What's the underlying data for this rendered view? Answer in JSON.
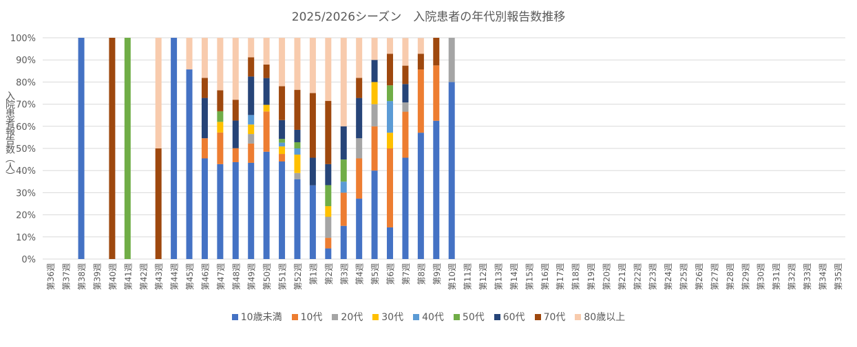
{
  "chart_data": {
    "type": "bar",
    "stacked": "percent",
    "title": "2025/2026シーズン　入院患者の年代別報告数推移",
    "ylabel": "入院患者報告数（人）",
    "xlabel": "",
    "ylim": [
      0,
      100
    ],
    "yticks": [
      "0%",
      "10%",
      "20%",
      "30%",
      "40%",
      "50%",
      "60%",
      "70%",
      "80%",
      "90%",
      "100%"
    ],
    "grid": true,
    "legend": "bottom",
    "categories": [
      "第36週",
      "第37週",
      "第38週",
      "第39週",
      "第40週",
      "第41週",
      "第42週",
      "第43週",
      "第44週",
      "第45週",
      "第46週",
      "第47週",
      "第48週",
      "第49週",
      "第50週",
      "第51週",
      "第52週",
      "第1週",
      "第2週",
      "第3週",
      "第4週",
      "第5週",
      "第6週",
      "第7週",
      "第8週",
      "第9週",
      "第10週",
      "第11週",
      "第12週",
      "第13週",
      "第14週",
      "第15週",
      "第16週",
      "第17週",
      "第18週",
      "第19週",
      "第20週",
      "第21週",
      "第22週",
      "第23週",
      "第24週",
      "第25週",
      "第26週",
      "第27週",
      "第28週",
      "第29週",
      "第30週",
      "第31週",
      "第32週",
      "第33週",
      "第34週",
      "第35週"
    ],
    "series": [
      {
        "name": "10歳未満",
        "color": "#4472C4",
        "values": [
          null,
          null,
          100,
          null,
          0,
          0,
          null,
          0,
          100,
          85.7,
          45.5,
          42.9,
          43.8,
          43.5,
          48.5,
          44.1,
          36.1,
          33.3,
          4.8,
          15,
          27.3,
          40,
          14.3,
          45.8,
          57.1,
          62.5,
          80,
          null,
          null,
          null,
          null,
          null,
          null,
          null,
          null,
          null,
          null,
          null,
          null,
          null,
          null,
          null,
          null,
          null,
          null,
          null,
          null,
          null,
          null,
          null,
          null,
          null
        ]
      },
      {
        "name": "10代",
        "color": "#ED7D31",
        "values": [
          null,
          null,
          0,
          null,
          0,
          0,
          null,
          0,
          0,
          0,
          9.1,
          14.3,
          6.3,
          8.7,
          18.2,
          3.4,
          0,
          0,
          4.8,
          15,
          18.2,
          20,
          35.7,
          20.8,
          28.6,
          25,
          0,
          null,
          null,
          null,
          null,
          null,
          null,
          null,
          null,
          null,
          null,
          null,
          null,
          null,
          null,
          null,
          null,
          null,
          null,
          null,
          null,
          null,
          null,
          null,
          null,
          null
        ]
      },
      {
        "name": "20代",
        "color": "#A5A5A5",
        "values": [
          null,
          null,
          0,
          null,
          0,
          0,
          null,
          0,
          0,
          0,
          0,
          0,
          0,
          4.3,
          0,
          0,
          2.8,
          0,
          9.5,
          0,
          9.1,
          10,
          0,
          4.2,
          0,
          0,
          20,
          null,
          null,
          null,
          null,
          null,
          null,
          null,
          null,
          null,
          null,
          null,
          null,
          null,
          null,
          null,
          null,
          null,
          null,
          null,
          null,
          null,
          null,
          null,
          null,
          null
        ]
      },
      {
        "name": "30代",
        "color": "#FFC000",
        "values": [
          null,
          null,
          0,
          null,
          0,
          0,
          null,
          0,
          0,
          0,
          0,
          4.8,
          0,
          4.3,
          3.0,
          3.4,
          8.3,
          0,
          4.8,
          0,
          0,
          10,
          7.1,
          0,
          0,
          0,
          0,
          null,
          null,
          null,
          null,
          null,
          null,
          null,
          null,
          null,
          null,
          null,
          null,
          null,
          null,
          null,
          null,
          null,
          null,
          null,
          null,
          null,
          null,
          null,
          null,
          null
        ]
      },
      {
        "name": "40代",
        "color": "#5B9BD5",
        "values": [
          null,
          null,
          0,
          null,
          0,
          0,
          null,
          0,
          0,
          0,
          0,
          0,
          0,
          4.3,
          0,
          1.7,
          2.8,
          0,
          0,
          5,
          0,
          0,
          14.3,
          0,
          0,
          0,
          0,
          null,
          null,
          null,
          null,
          null,
          null,
          null,
          null,
          null,
          null,
          null,
          null,
          null,
          null,
          null,
          null,
          null,
          null,
          null,
          null,
          null,
          null,
          null,
          null,
          null
        ]
      },
      {
        "name": "50代",
        "color": "#70AD47",
        "values": [
          null,
          null,
          0,
          null,
          0,
          100,
          null,
          0,
          0,
          0,
          0,
          4.8,
          0,
          0,
          0,
          1.7,
          2.8,
          0,
          9.5,
          10,
          0,
          0,
          7.1,
          0,
          0,
          0,
          0,
          null,
          null,
          null,
          null,
          null,
          null,
          null,
          null,
          null,
          null,
          null,
          null,
          null,
          null,
          null,
          null,
          null,
          null,
          null,
          null,
          null,
          null,
          null,
          null,
          null
        ]
      },
      {
        "name": "60代",
        "color": "#264478",
        "values": [
          null,
          null,
          0,
          null,
          0,
          0,
          null,
          0,
          0,
          0,
          18.2,
          0,
          12.5,
          17.4,
          12.1,
          8.5,
          5.6,
          12.5,
          9.5,
          15,
          18.2,
          10,
          0,
          8.3,
          0,
          0,
          0,
          null,
          null,
          null,
          null,
          null,
          null,
          null,
          null,
          null,
          null,
          null,
          null,
          null,
          null,
          null,
          null,
          null,
          null,
          null,
          null,
          null,
          null,
          null,
          null,
          null
        ]
      },
      {
        "name": "70代",
        "color": "#9E480E",
        "values": [
          null,
          null,
          0,
          null,
          100,
          0,
          null,
          50,
          0,
          0,
          9.1,
          9.5,
          9.4,
          8.7,
          6.1,
          15.3,
          18.1,
          29.2,
          28.6,
          0,
          9.1,
          0,
          14.3,
          8.3,
          7.1,
          12.5,
          0,
          null,
          null,
          null,
          null,
          null,
          null,
          null,
          null,
          null,
          null,
          null,
          null,
          null,
          null,
          null,
          null,
          null,
          null,
          null,
          null,
          null,
          null,
          null,
          null,
          null
        ]
      },
      {
        "name": "80歳以上",
        "color": "#F8CBAD",
        "values": [
          null,
          null,
          0,
          null,
          0,
          0,
          null,
          50,
          0,
          14.3,
          18.2,
          23.8,
          28.1,
          8.7,
          12.1,
          22.0,
          23.6,
          25.0,
          28.6,
          40,
          18.2,
          10,
          7.1,
          12.5,
          7.1,
          0,
          0,
          null,
          null,
          null,
          null,
          null,
          null,
          null,
          null,
          null,
          null,
          null,
          null,
          null,
          null,
          null,
          null,
          null,
          null,
          null,
          null,
          null,
          null,
          null,
          null,
          null
        ]
      }
    ]
  }
}
